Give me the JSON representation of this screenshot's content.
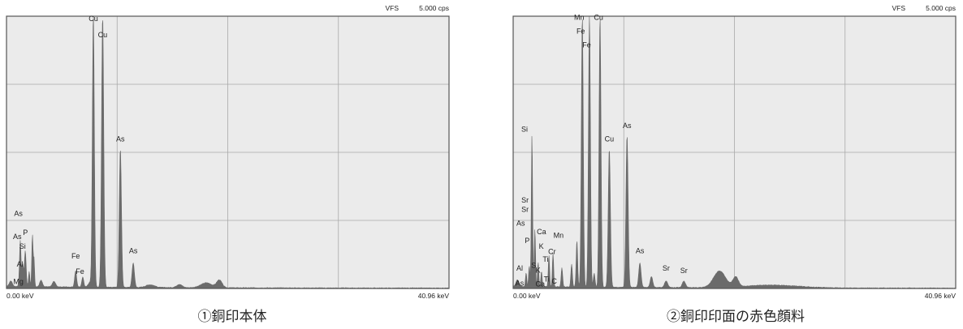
{
  "chart_data": [
    {
      "type": "area",
      "vfs_label": "VFS",
      "vfs_value": "5.000 cps",
      "x_start_label": "0.00 keV",
      "x_end_label": "40.96 keV",
      "xlim": [
        0,
        40.96
      ],
      "ylim": [
        0,
        5.0
      ],
      "grid": true,
      "caption": "①銅印本体",
      "fill_color": "#6b6b6b",
      "plot_bg": "#ebebeb",
      "peaks": [
        {
          "x": 0.4,
          "y": 0.1,
          "w": 0.14
        },
        {
          "x": 1.25,
          "y": 0.3,
          "w": 0.08
        },
        {
          "x": 1.49,
          "y": 0.42,
          "w": 0.08
        },
        {
          "x": 1.74,
          "y": 0.65,
          "w": 0.08
        },
        {
          "x": 1.28,
          "y": 0.55,
          "w": 0.06
        },
        {
          "x": 2.1,
          "y": 0.28,
          "w": 0.06
        },
        {
          "x": 2.4,
          "y": 0.95,
          "w": 0.06
        },
        {
          "x": 2.55,
          "y": 0.5,
          "w": 0.05
        },
        {
          "x": 3.2,
          "y": 0.12,
          "w": 0.12
        },
        {
          "x": 4.4,
          "y": 0.1,
          "w": 0.15
        },
        {
          "x": 6.4,
          "y": 0.3,
          "w": 0.09
        },
        {
          "x": 7.06,
          "y": 0.18,
          "w": 0.09
        },
        {
          "x": 7.8,
          "y": 0.1,
          "w": 0.2
        },
        {
          "x": 8.04,
          "y": 5.0,
          "w": 0.09
        },
        {
          "x": 8.9,
          "y": 5.0,
          "w": 0.1
        },
        {
          "x": 10.54,
          "y": 2.55,
          "w": 0.1
        },
        {
          "x": 11.73,
          "y": 0.45,
          "w": 0.11
        },
        {
          "x": 13.3,
          "y": 0.05,
          "w": 0.4
        },
        {
          "x": 16.0,
          "y": 0.06,
          "w": 0.25
        },
        {
          "x": 18.5,
          "y": 0.09,
          "w": 0.5
        },
        {
          "x": 19.7,
          "y": 0.14,
          "w": 0.25
        }
      ],
      "peak_labels": [
        {
          "text": "Cu",
          "x": 8.04,
          "y": 4.88
        },
        {
          "text": "Cu",
          "x": 8.9,
          "y": 4.58
        },
        {
          "text": "As",
          "x": 10.54,
          "y": 2.67
        },
        {
          "text": "As",
          "x": 11.73,
          "y": 0.62
        },
        {
          "text": "Fe",
          "x": 6.4,
          "y": 0.52
        },
        {
          "text": "Fe",
          "x": 6.8,
          "y": 0.24
        },
        {
          "text": "As",
          "x": 1.1,
          "y": 1.3
        },
        {
          "text": "As",
          "x": 1.0,
          "y": 0.88
        },
        {
          "text": "P",
          "x": 1.74,
          "y": 0.95
        },
        {
          "text": "Si",
          "x": 1.49,
          "y": 0.7
        },
        {
          "text": "Al",
          "x": 1.25,
          "y": 0.37
        },
        {
          "text": "Mg",
          "x": 1.1,
          "y": 0.05
        }
      ]
    },
    {
      "type": "area",
      "vfs_label": "VFS",
      "vfs_value": "5.000 cps",
      "x_start_label": "0.00 keV",
      "x_end_label": "40.96 keV",
      "xlim": [
        0,
        40.96
      ],
      "ylim": [
        0,
        5.0
      ],
      "grid": true,
      "caption": "②銅印印面の赤色顔料",
      "fill_color": "#6b6b6b",
      "plot_bg": "#ebebeb",
      "peaks": [
        {
          "x": 0.4,
          "y": 0.12,
          "w": 0.14
        },
        {
          "x": 1.2,
          "y": 0.25,
          "w": 0.06
        },
        {
          "x": 1.49,
          "y": 0.38,
          "w": 0.06
        },
        {
          "x": 1.74,
          "y": 2.8,
          "w": 0.06
        },
        {
          "x": 2.01,
          "y": 1.05,
          "w": 0.06
        },
        {
          "x": 2.31,
          "y": 0.45,
          "w": 0.06
        },
        {
          "x": 2.62,
          "y": 0.28,
          "w": 0.06
        },
        {
          "x": 3.31,
          "y": 0.58,
          "w": 0.06
        },
        {
          "x": 3.69,
          "y": 0.62,
          "w": 0.06
        },
        {
          "x": 4.51,
          "y": 0.35,
          "w": 0.07
        },
        {
          "x": 5.41,
          "y": 0.42,
          "w": 0.07
        },
        {
          "x": 5.9,
          "y": 0.85,
          "w": 0.07
        },
        {
          "x": 6.4,
          "y": 5.0,
          "w": 0.09
        },
        {
          "x": 7.06,
          "y": 5.0,
          "w": 0.09
        },
        {
          "x": 7.5,
          "y": 0.25,
          "w": 0.08
        },
        {
          "x": 8.04,
          "y": 5.0,
          "w": 0.09
        },
        {
          "x": 8.9,
          "y": 2.55,
          "w": 0.1
        },
        {
          "x": 10.54,
          "y": 2.8,
          "w": 0.1
        },
        {
          "x": 11.73,
          "y": 0.45,
          "w": 0.11
        },
        {
          "x": 12.8,
          "y": 0.2,
          "w": 0.12
        },
        {
          "x": 14.16,
          "y": 0.12,
          "w": 0.15
        },
        {
          "x": 15.8,
          "y": 0.12,
          "w": 0.15
        },
        {
          "x": 19.1,
          "y": 0.3,
          "w": 0.55
        },
        {
          "x": 20.6,
          "y": 0.18,
          "w": 0.25
        },
        {
          "x": 24.0,
          "y": 0.05,
          "w": 2.5
        }
      ],
      "peak_labels": [
        {
          "text": "Mn",
          "x": 6.1,
          "y": 4.9
        },
        {
          "text": "Fe",
          "x": 6.25,
          "y": 4.65
        },
        {
          "text": "Fe",
          "x": 6.8,
          "y": 4.4
        },
        {
          "text": "Cu",
          "x": 7.9,
          "y": 4.9
        },
        {
          "text": "Cu",
          "x": 8.9,
          "y": 2.67
        },
        {
          "text": "As",
          "x": 10.54,
          "y": 2.92
        },
        {
          "text": "As",
          "x": 11.73,
          "y": 0.62
        },
        {
          "text": "Sr",
          "x": 14.16,
          "y": 0.3
        },
        {
          "text": "Sr",
          "x": 15.8,
          "y": 0.25
        },
        {
          "text": "Si",
          "x": 1.05,
          "y": 2.85
        },
        {
          "text": "Sr",
          "x": 1.1,
          "y": 1.55
        },
        {
          "text": "Sr",
          "x": 1.1,
          "y": 1.38
        },
        {
          "text": "As",
          "x": 0.7,
          "y": 1.12
        },
        {
          "text": "P",
          "x": 1.3,
          "y": 0.8
        },
        {
          "text": "Ca",
          "x": 2.62,
          "y": 0.97
        },
        {
          "text": "K",
          "x": 2.6,
          "y": 0.7
        },
        {
          "text": "Mn",
          "x": 4.2,
          "y": 0.9
        },
        {
          "text": "Cr",
          "x": 3.6,
          "y": 0.6
        },
        {
          "text": "Ti",
          "x": 3.0,
          "y": 0.46
        },
        {
          "text": "S",
          "x": 1.9,
          "y": 0.35
        },
        {
          "text": "K",
          "x": 2.3,
          "y": 0.26
        },
        {
          "text": "Ti",
          "x": 3.1,
          "y": 0.1
        },
        {
          "text": "C",
          "x": 3.8,
          "y": 0.06
        },
        {
          "text": "Ca",
          "x": 2.5,
          "y": 0.01
        },
        {
          "text": "Al",
          "x": 0.6,
          "y": 0.3
        },
        {
          "text": "As",
          "x": 0.6,
          "y": 0.02
        }
      ]
    }
  ]
}
